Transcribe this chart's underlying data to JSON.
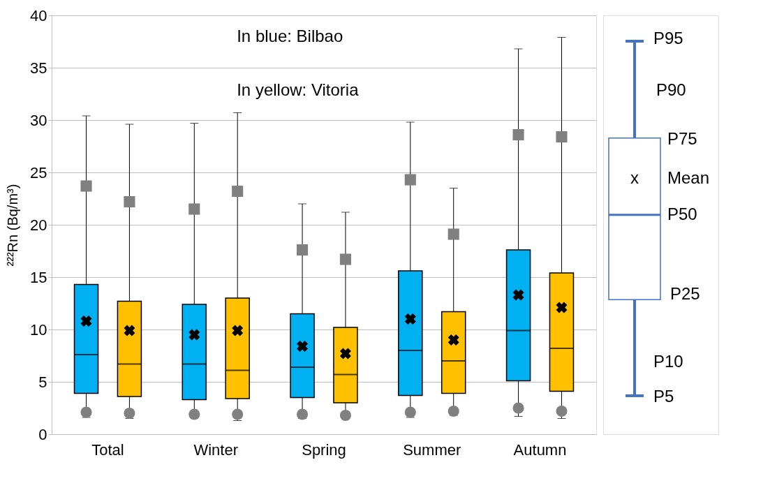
{
  "chart_data": {
    "type": "box",
    "ylabel": "²²²Rn (Bq/m³)",
    "categories": [
      "Total",
      "Winter",
      "Spring",
      "Summer",
      "Autumn"
    ],
    "ylim": [
      0,
      40
    ],
    "yticks": [
      0,
      5,
      10,
      15,
      20,
      25,
      30,
      35,
      40
    ],
    "grid": "y",
    "series": [
      {
        "color": "#00b0f0",
        "boxes": [
          {
            "low": 1.6,
            "q1": 3.9,
            "median": 7.6,
            "q3": 14.3,
            "high": 30.4,
            "mean": 10.8
          },
          {
            "low": 1.6,
            "q1": 3.3,
            "median": 6.7,
            "q3": 12.4,
            "high": 29.7,
            "mean": 9.5
          },
          {
            "low": 1.5,
            "q1": 3.5,
            "median": 6.4,
            "q3": 11.5,
            "high": 22.0,
            "mean": 8.4
          },
          {
            "low": 1.6,
            "q1": 3.7,
            "median": 8.0,
            "q3": 15.6,
            "high": 29.8,
            "mean": 11.0
          },
          {
            "low": 1.7,
            "q1": 5.1,
            "median": 9.9,
            "q3": 17.6,
            "high": 36.8,
            "mean": 13.3
          }
        ]
      },
      {
        "color": "#ffc000",
        "boxes": [
          {
            "low": 1.5,
            "q1": 3.6,
            "median": 6.7,
            "q3": 12.7,
            "high": 29.6,
            "mean": 9.9
          },
          {
            "low": 1.3,
            "q1": 3.4,
            "median": 6.1,
            "q3": 13.0,
            "high": 30.7,
            "mean": 9.9
          },
          {
            "low": 1.7,
            "q1": 3.0,
            "median": 5.7,
            "q3": 10.2,
            "high": 21.2,
            "mean": 7.7
          },
          {
            "low": 1.8,
            "q1": 3.9,
            "median": 7.0,
            "q3": 11.7,
            "high": 23.5,
            "mean": 9.0
          },
          {
            "low": 1.5,
            "q1": 4.1,
            "median": 8.2,
            "q3": 15.4,
            "high": 37.9,
            "mean": 12.1
          }
        ]
      },
      {
        "type": "scatter",
        "marker": "circle",
        "color": "#808080",
        "x": [
          "Total",
          "Winter",
          "Spring",
          "Summer",
          "Autumn"
        ],
        "values": [
          2.1,
          1.9,
          1.9,
          2.1,
          2.5
        ]
      },
      {
        "type": "scatter",
        "marker": "circle",
        "color": "#808080",
        "x": [
          "Total",
          "Winter",
          "Spring",
          "Summer",
          "Autumn"
        ],
        "values": [
          2.0,
          1.9,
          1.8,
          2.2,
          2.2
        ]
      },
      {
        "type": "scatter",
        "marker": "square",
        "color": "#808080",
        "x": [
          "Total",
          "Winter",
          "Spring",
          "Summer",
          "Autumn"
        ],
        "values": [
          23.7,
          21.5,
          17.6,
          24.3,
          28.6
        ]
      },
      {
        "type": "scatter",
        "marker": "square",
        "color": "#808080",
        "x": [
          "Total",
          "Winter",
          "Spring",
          "Summer",
          "Autumn"
        ],
        "values": [
          22.2,
          23.2,
          16.7,
          19.1,
          28.4
        ]
      }
    ],
    "annotations": [
      "In blue: Bilbao",
      "In yellow: Vitoria",
      "P95",
      "P90",
      "P75",
      "x",
      "Mean",
      "P50",
      "P25",
      "P10",
      "P5"
    ]
  }
}
